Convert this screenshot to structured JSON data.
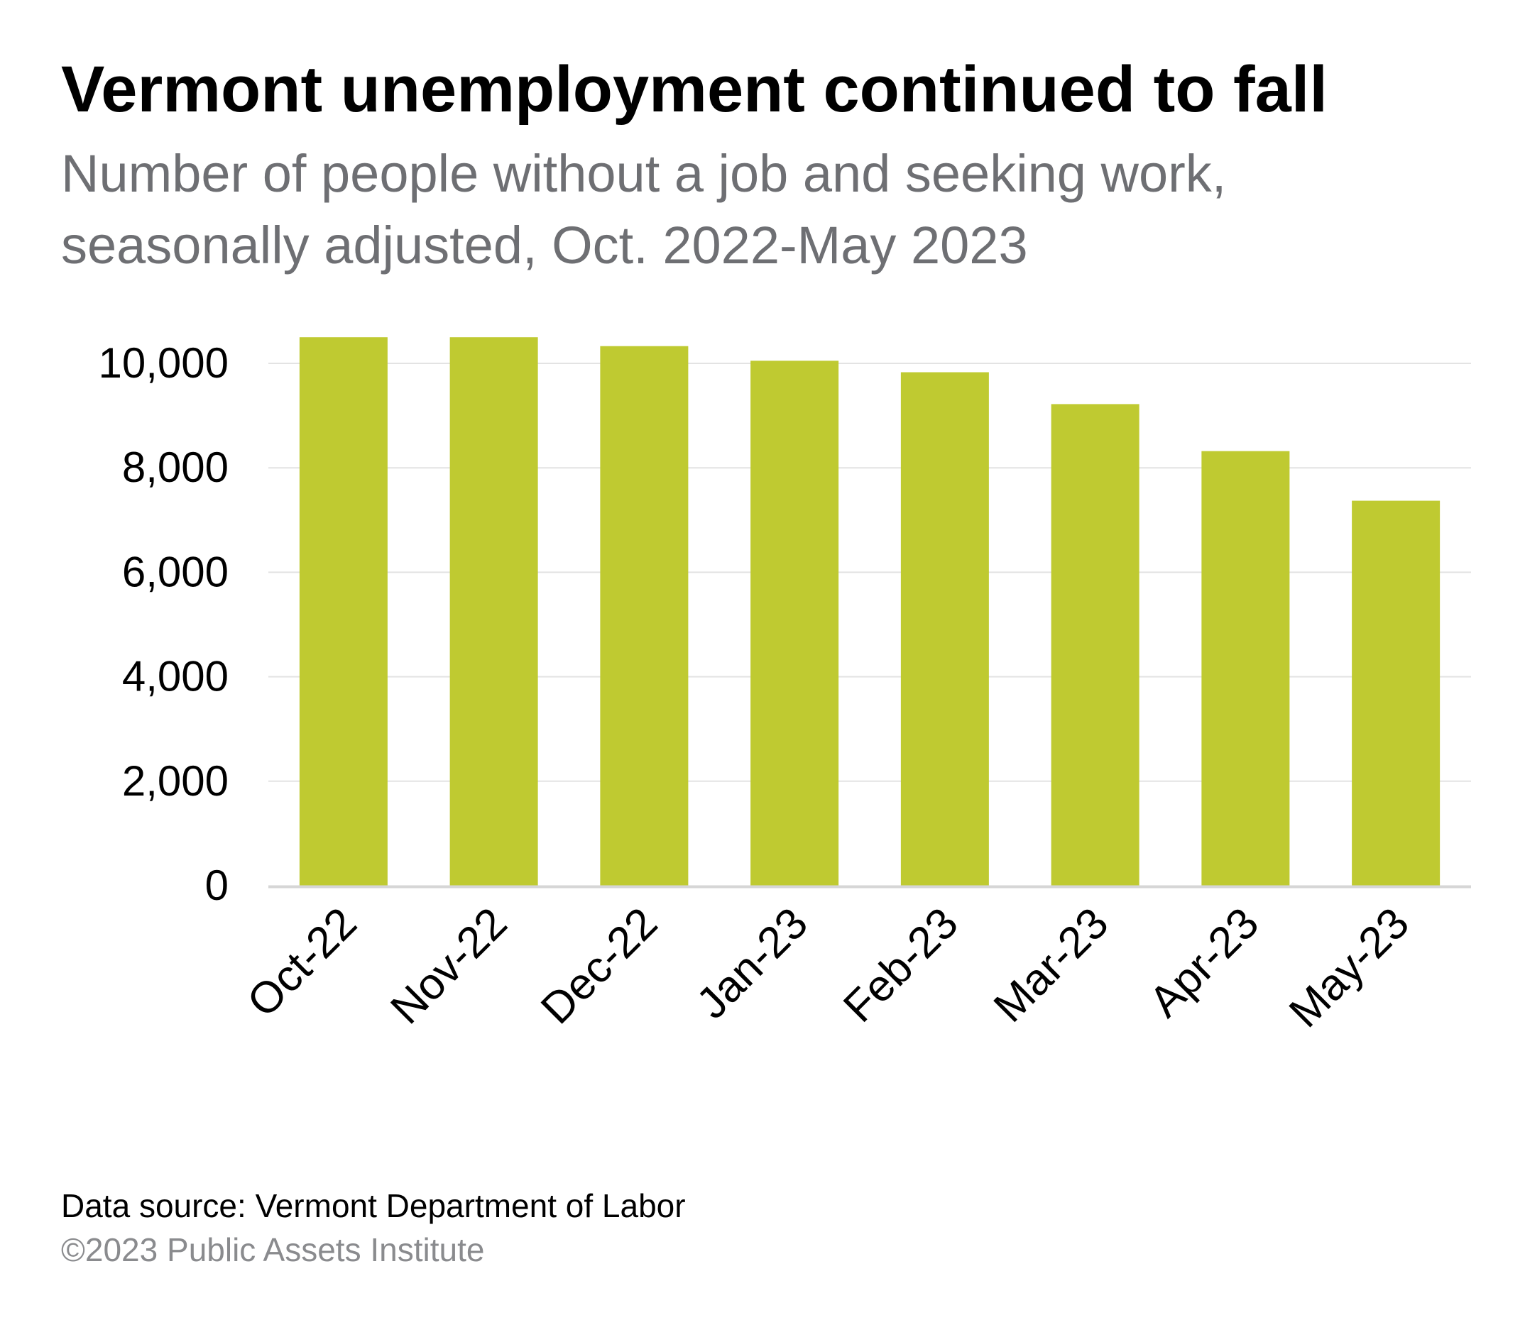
{
  "header": {
    "title": "Vermont unemployment continued to fall",
    "subtitle": "Number of people without a job and seeking work, seasonally adjusted, Oct. 2022-May 2023"
  },
  "footer": {
    "source": "Data source: Vermont Department of Labor",
    "copyright": "©2023 Public Assets Institute"
  },
  "colors": {
    "bar": "#bfca31",
    "gridline": "#e3e3e3",
    "axis": "#d6d6d6"
  },
  "chart_data": {
    "type": "bar",
    "title": "Vermont unemployment continued to fall",
    "subtitle": "Number of people without a job and seeking work, seasonally adjusted, Oct. 2022-May 2023",
    "xlabel": "",
    "ylabel": "",
    "categories": [
      "Oct-22",
      "Nov-22",
      "Dec-22",
      "Jan-23",
      "Feb-23",
      "Mar-23",
      "Apr-23",
      "May-23"
    ],
    "values": [
      10500,
      10500,
      10330,
      10050,
      9830,
      9220,
      8320,
      7370
    ],
    "ylim": [
      0,
      10000
    ],
    "yticks": [
      0,
      2000,
      4000,
      6000,
      8000,
      10000
    ],
    "ytick_labels": [
      "0",
      "2,000",
      "4,000",
      "6,000",
      "8,000",
      "10,000"
    ],
    "grid": true,
    "legend": "none"
  }
}
